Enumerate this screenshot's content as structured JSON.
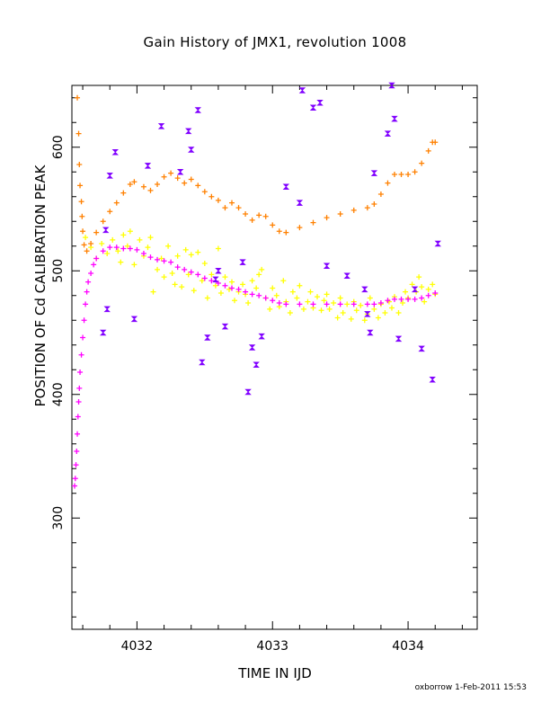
{
  "chart_data": {
    "type": "scatter",
    "title": "Gain History of JMX1, revolution 1008",
    "xlabel": "TIME IN IJD",
    "ylabel": "POSITION OF Cd CALIBRATION PEAK",
    "credit": "oxborrow  1-Feb-2011 15:53",
    "xlim": [
      4031.52,
      4034.51
    ],
    "ylim": [
      210,
      650
    ],
    "x_ticks": [
      4032,
      4033,
      4034
    ],
    "y_ticks": [
      300,
      400,
      500,
      600
    ],
    "grid": false,
    "series": [
      {
        "color": "#ff8000",
        "marker": "plus",
        "points": [
          [
            4031.56,
            640
          ],
          [
            4031.57,
            611
          ],
          [
            4031.575,
            586
          ],
          [
            4031.58,
            569
          ],
          [
            4031.59,
            556
          ],
          [
            4031.595,
            544
          ],
          [
            4031.6,
            532
          ],
          [
            4031.61,
            521
          ],
          [
            4031.63,
            516
          ],
          [
            4031.66,
            522
          ],
          [
            4031.7,
            531
          ],
          [
            4031.75,
            540
          ],
          [
            4031.8,
            548
          ],
          [
            4031.85,
            555
          ],
          [
            4031.9,
            563
          ],
          [
            4031.95,
            570
          ],
          [
            4031.98,
            572
          ],
          [
            4032.05,
            568
          ],
          [
            4032.1,
            565
          ],
          [
            4032.15,
            570
          ],
          [
            4032.2,
            576
          ],
          [
            4032.25,
            579
          ],
          [
            4032.3,
            575
          ],
          [
            4032.35,
            571
          ],
          [
            4032.4,
            574
          ],
          [
            4032.45,
            569
          ],
          [
            4032.5,
            564
          ],
          [
            4032.55,
            560
          ],
          [
            4032.6,
            557
          ],
          [
            4032.65,
            551
          ],
          [
            4032.7,
            555
          ],
          [
            4032.75,
            551
          ],
          [
            4032.8,
            546
          ],
          [
            4032.85,
            541
          ],
          [
            4032.9,
            545
          ],
          [
            4032.95,
            544
          ],
          [
            4033.0,
            537
          ],
          [
            4033.05,
            532
          ],
          [
            4033.1,
            531
          ],
          [
            4033.2,
            535
          ],
          [
            4033.3,
            539
          ],
          [
            4033.4,
            543
          ],
          [
            4033.5,
            546
          ],
          [
            4033.6,
            549
          ],
          [
            4033.7,
            551
          ],
          [
            4033.75,
            554
          ],
          [
            4033.8,
            562
          ],
          [
            4033.85,
            571
          ],
          [
            4033.9,
            578
          ],
          [
            4033.95,
            578
          ],
          [
            4034.0,
            578
          ],
          [
            4034.05,
            580
          ],
          [
            4034.1,
            587
          ],
          [
            4034.15,
            597
          ],
          [
            4034.18,
            604
          ],
          [
            4034.2,
            604
          ]
        ]
      },
      {
        "color": "#ff00ff",
        "marker": "plus",
        "points": [
          [
            4031.54,
            326
          ],
          [
            4031.545,
            332
          ],
          [
            4031.55,
            343
          ],
          [
            4031.555,
            354
          ],
          [
            4031.56,
            368
          ],
          [
            4031.565,
            382
          ],
          [
            4031.57,
            394
          ],
          [
            4031.575,
            405
          ],
          [
            4031.58,
            418
          ],
          [
            4031.59,
            432
          ],
          [
            4031.6,
            446
          ],
          [
            4031.61,
            460
          ],
          [
            4031.62,
            473
          ],
          [
            4031.63,
            483
          ],
          [
            4031.64,
            491
          ],
          [
            4031.66,
            498
          ],
          [
            4031.68,
            505
          ],
          [
            4031.7,
            510
          ],
          [
            4031.75,
            516
          ],
          [
            4031.8,
            519
          ],
          [
            4031.85,
            519
          ],
          [
            4031.9,
            518
          ],
          [
            4031.95,
            518
          ],
          [
            4032.0,
            517
          ],
          [
            4032.05,
            514
          ],
          [
            4032.1,
            511
          ],
          [
            4032.15,
            509
          ],
          [
            4032.2,
            508
          ],
          [
            4032.25,
            507
          ],
          [
            4032.3,
            503
          ],
          [
            4032.35,
            501
          ],
          [
            4032.4,
            499
          ],
          [
            4032.45,
            497
          ],
          [
            4032.5,
            494
          ],
          [
            4032.55,
            492
          ],
          [
            4032.6,
            490
          ],
          [
            4032.65,
            488
          ],
          [
            4032.7,
            486
          ],
          [
            4032.75,
            485
          ],
          [
            4032.8,
            483
          ],
          [
            4032.85,
            481
          ],
          [
            4032.9,
            480
          ],
          [
            4032.95,
            478
          ],
          [
            4033.0,
            476
          ],
          [
            4033.05,
            474
          ],
          [
            4033.1,
            473
          ],
          [
            4033.2,
            473
          ],
          [
            4033.3,
            473
          ],
          [
            4033.4,
            473
          ],
          [
            4033.5,
            473
          ],
          [
            4033.6,
            473
          ],
          [
            4033.7,
            473
          ],
          [
            4033.75,
            473
          ],
          [
            4033.8,
            474
          ],
          [
            4033.85,
            476
          ],
          [
            4033.9,
            477
          ],
          [
            4033.95,
            477
          ],
          [
            4034.0,
            477
          ],
          [
            4034.05,
            477
          ],
          [
            4034.1,
            478
          ],
          [
            4034.15,
            480
          ],
          [
            4034.2,
            482
          ]
        ]
      },
      {
        "color": "#ffff00",
        "marker": "plus",
        "points": [
          [
            4031.62,
            527
          ],
          [
            4031.66,
            519
          ],
          [
            4031.7,
            510
          ],
          [
            4031.74,
            522
          ],
          [
            4031.78,
            514
          ],
          [
            4031.82,
            525
          ],
          [
            4031.86,
            516
          ],
          [
            4031.88,
            507
          ],
          [
            4031.9,
            529
          ],
          [
            4031.93,
            520
          ],
          [
            4031.95,
            532
          ],
          [
            4031.98,
            505
          ],
          [
            4032.02,
            525
          ],
          [
            4032.05,
            512
          ],
          [
            4032.08,
            519
          ],
          [
            4032.1,
            527
          ],
          [
            4032.12,
            483
          ],
          [
            4032.15,
            501
          ],
          [
            4032.18,
            510
          ],
          [
            4032.2,
            495
          ],
          [
            4032.23,
            520
          ],
          [
            4032.26,
            498
          ],
          [
            4032.28,
            489
          ],
          [
            4032.3,
            512
          ],
          [
            4032.33,
            487
          ],
          [
            4032.36,
            517
          ],
          [
            4032.38,
            497
          ],
          [
            4032.4,
            513
          ],
          [
            4032.42,
            484
          ],
          [
            4032.45,
            515
          ],
          [
            4032.48,
            492
          ],
          [
            4032.5,
            506
          ],
          [
            4032.52,
            478
          ],
          [
            4032.55,
            497
          ],
          [
            4032.58,
            488
          ],
          [
            4032.6,
            518
          ],
          [
            4032.62,
            482
          ],
          [
            4032.65,
            495
          ],
          [
            4032.68,
            485
          ],
          [
            4032.7,
            491
          ],
          [
            4032.72,
            476
          ],
          [
            4032.75,
            483
          ],
          [
            4032.78,
            489
          ],
          [
            4032.8,
            481
          ],
          [
            4032.82,
            474
          ],
          [
            4032.85,
            492
          ],
          [
            4032.88,
            486
          ],
          [
            4032.9,
            497
          ],
          [
            4032.92,
            501
          ],
          [
            4032.95,
            478
          ],
          [
            4032.98,
            469
          ],
          [
            4033.0,
            486
          ],
          [
            4033.03,
            480
          ],
          [
            4033.05,
            471
          ],
          [
            4033.08,
            492
          ],
          [
            4033.1,
            475
          ],
          [
            4033.13,
            466
          ],
          [
            4033.15,
            483
          ],
          [
            4033.18,
            478
          ],
          [
            4033.2,
            488
          ],
          [
            4033.23,
            469
          ],
          [
            4033.26,
            475
          ],
          [
            4033.28,
            483
          ],
          [
            4033.3,
            470
          ],
          [
            4033.33,
            479
          ],
          [
            4033.36,
            468
          ],
          [
            4033.38,
            476
          ],
          [
            4033.4,
            481
          ],
          [
            4033.42,
            469
          ],
          [
            4033.45,
            474
          ],
          [
            4033.48,
            462
          ],
          [
            4033.5,
            478
          ],
          [
            4033.52,
            466
          ],
          [
            4033.55,
            473
          ],
          [
            4033.58,
            461
          ],
          [
            4033.6,
            475
          ],
          [
            4033.62,
            468
          ],
          [
            4033.65,
            472
          ],
          [
            4033.68,
            460
          ],
          [
            4033.7,
            465
          ],
          [
            4033.72,
            478
          ],
          [
            4033.75,
            469
          ],
          [
            4033.78,
            462
          ],
          [
            4033.8,
            473
          ],
          [
            4033.83,
            466
          ],
          [
            4033.86,
            475
          ],
          [
            4033.88,
            470
          ],
          [
            4033.9,
            479
          ],
          [
            4033.93,
            466
          ],
          [
            4033.96,
            474
          ],
          [
            4033.98,
            483
          ],
          [
            4034.0,
            478
          ],
          [
            4034.03,
            489
          ],
          [
            4034.06,
            483
          ],
          [
            4034.08,
            495
          ],
          [
            4034.1,
            487
          ],
          [
            4034.12,
            475
          ],
          [
            4034.15,
            485
          ],
          [
            4034.18,
            489
          ],
          [
            4034.2,
            481
          ]
        ]
      },
      {
        "color": "#8000ff",
        "marker": "bowtie",
        "points": [
          [
            4031.75,
            450
          ],
          [
            4031.77,
            533
          ],
          [
            4031.78,
            469
          ],
          [
            4031.8,
            577
          ],
          [
            4031.84,
            596
          ],
          [
            4031.98,
            461
          ],
          [
            4032.08,
            585
          ],
          [
            4032.18,
            617
          ],
          [
            4032.32,
            580
          ],
          [
            4032.38,
            613
          ],
          [
            4032.4,
            598
          ],
          [
            4032.45,
            630
          ],
          [
            4032.48,
            426
          ],
          [
            4032.52,
            446
          ],
          [
            4032.58,
            493
          ],
          [
            4032.6,
            500
          ],
          [
            4032.65,
            455
          ],
          [
            4032.78,
            507
          ],
          [
            4032.82,
            402
          ],
          [
            4032.85,
            438
          ],
          [
            4032.88,
            424
          ],
          [
            4032.92,
            447
          ],
          [
            4033.1,
            568
          ],
          [
            4033.2,
            555
          ],
          [
            4033.22,
            646
          ],
          [
            4033.3,
            632
          ],
          [
            4033.35,
            636
          ],
          [
            4033.4,
            504
          ],
          [
            4033.55,
            496
          ],
          [
            4033.68,
            485
          ],
          [
            4033.7,
            465
          ],
          [
            4033.72,
            450
          ],
          [
            4033.75,
            579
          ],
          [
            4033.85,
            611
          ],
          [
            4033.88,
            650
          ],
          [
            4033.9,
            623
          ],
          [
            4033.93,
            445
          ],
          [
            4034.05,
            485
          ],
          [
            4034.1,
            437
          ],
          [
            4034.18,
            412
          ],
          [
            4034.22,
            522
          ]
        ]
      }
    ]
  }
}
